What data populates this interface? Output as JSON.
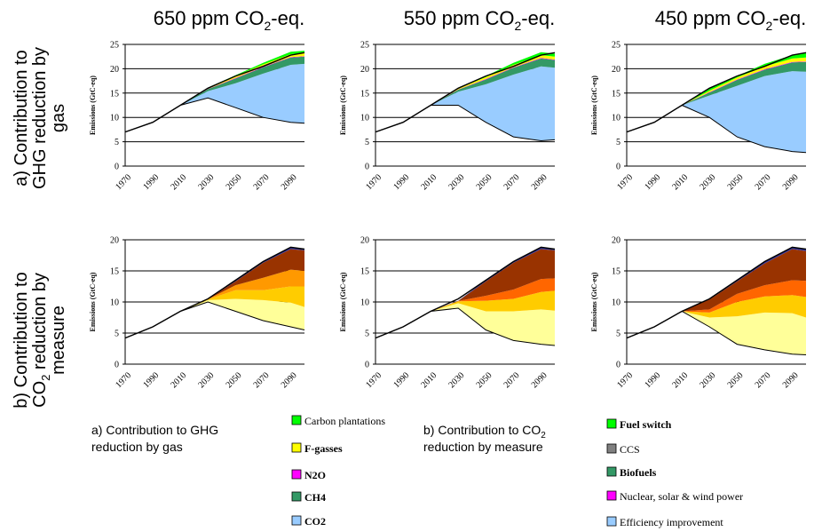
{
  "titles": {
    "col": [
      [
        "650 ppm CO",
        "2",
        "-eq."
      ],
      [
        "550 ppm CO",
        "2",
        "-eq."
      ],
      [
        "450 ppm CO",
        "2",
        "-eq."
      ]
    ],
    "row_a": [
      "a) Contribution to",
      "GHG reduction by",
      "gas"
    ],
    "row_b": [
      "b) Contribution to",
      "CO",
      "2",
      " reduction by",
      "measure"
    ]
  },
  "colors": {
    "co2": "#99ccff",
    "ch4": "#339966",
    "n2o": "#ff00ff",
    "fgas": "#ffff00",
    "plant": "#00ff00",
    "eff": "#ffff99",
    "nuc": "#ffcc00",
    "bio": "#ff9900",
    "ccs": "#ff6600",
    "fuel": "#993300",
    "tail": "#333399"
  },
  "legend_a": {
    "title": [
      "a) Contribution to  GHG",
      "reduction by gas"
    ],
    "items": [
      {
        "label": "Carbon plantations",
        "color": "#00ff00",
        "bold": false
      },
      {
        "label": "F-gasses",
        "color": "#ffff00",
        "bold": true
      },
      {
        "label": "N2O",
        "color": "#ff00ff",
        "bold": true
      },
      {
        "label": "CH4",
        "color": "#339966",
        "bold": true
      },
      {
        "label": "CO2",
        "color": "#99ccff",
        "bold": true
      }
    ]
  },
  "legend_b": {
    "title": [
      "b) Contribution to CO",
      "2",
      "reduction by measure"
    ],
    "items": [
      {
        "label": "Fuel switch",
        "color": "#00ff00",
        "bold": true
      },
      {
        "label": "CCS",
        "color": "#808080",
        "bold": false
      },
      {
        "label": "Biofuels",
        "color": "#339966",
        "bold": true
      },
      {
        "label": "Nuclear, solar & wind power",
        "color": "#ff00ff",
        "bold": false
      },
      {
        "label": "Efficiency improvement",
        "color": "#99ccff",
        "bold": false
      }
    ]
  },
  "chart_data": [
    {
      "type": "area",
      "panel": "a",
      "scenario": "650 ppm CO2-eq.",
      "ylabel": "Emissions (GtC-eq)",
      "ylim": [
        0,
        25
      ],
      "yticks": [
        0,
        5,
        10,
        15,
        20,
        25
      ],
      "x": [
        1970,
        1990,
        2010,
        2030,
        2050,
        2070,
        2090,
        2100
      ],
      "xticks": [
        1970,
        1990,
        2010,
        2030,
        2050,
        2070,
        2090
      ],
      "baseline": [
        7,
        9,
        12.5,
        16,
        18.5,
        20.5,
        22.8,
        23.3
      ],
      "remaining": [
        7,
        9,
        12.5,
        14,
        12,
        10,
        9,
        8.8
      ],
      "wedges": [
        {
          "key": "co2",
          "values": [
            0,
            0,
            0,
            1.4,
            5.0,
            9.0,
            11.8,
            12.2
          ]
        },
        {
          "key": "ch4",
          "values": [
            0,
            0,
            0,
            0.4,
            1.0,
            1.3,
            1.5,
            1.5
          ]
        },
        {
          "key": "n2o",
          "values": [
            0,
            0,
            0,
            0.05,
            0.1,
            0.1,
            0.1,
            0.1
          ]
        },
        {
          "key": "fgas",
          "values": [
            0,
            0,
            0,
            0.2,
            0.4,
            0.5,
            0.6,
            0.6
          ]
        },
        {
          "key": "plant",
          "values": [
            0,
            0,
            0,
            0.05,
            0.15,
            0.3,
            0.5,
            0.5
          ]
        }
      ]
    },
    {
      "type": "area",
      "panel": "a",
      "scenario": "550 ppm CO2-eq.",
      "ylabel": "Emissions (GtC-eq)",
      "ylim": [
        0,
        25
      ],
      "yticks": [
        0,
        5,
        10,
        15,
        20,
        25
      ],
      "x": [
        1970,
        1990,
        2010,
        2030,
        2050,
        2070,
        2090,
        2100
      ],
      "xticks": [
        1970,
        1990,
        2010,
        2030,
        2050,
        2070,
        2090
      ],
      "baseline": [
        7,
        9,
        12.5,
        16,
        18.5,
        20.5,
        22.8,
        23.3
      ],
      "remaining": [
        7,
        9,
        12.5,
        12.5,
        9,
        6,
        5.2,
        5.4
      ],
      "wedges": [
        {
          "key": "co2",
          "values": [
            0,
            0,
            0,
            2.8,
            7.8,
            12.8,
            15.3,
            14.8
          ]
        },
        {
          "key": "ch4",
          "values": [
            0,
            0,
            0,
            0.4,
            1.0,
            1.4,
            1.6,
            1.6
          ]
        },
        {
          "key": "n2o",
          "values": [
            0,
            0,
            0,
            0.05,
            0.1,
            0.1,
            0.1,
            0.1
          ]
        },
        {
          "key": "fgas",
          "values": [
            0,
            0,
            0,
            0.2,
            0.4,
            0.5,
            0.6,
            0.6
          ]
        },
        {
          "key": "plant",
          "values": [
            0,
            0,
            0,
            0.05,
            0.2,
            0.4,
            0.6,
            0.6
          ]
        }
      ]
    },
    {
      "type": "area",
      "panel": "a",
      "scenario": "450 ppm CO2-eq.",
      "ylabel": "Emissions (GtC-eq)",
      "ylim": [
        0,
        25
      ],
      "yticks": [
        0,
        5,
        10,
        15,
        20,
        25
      ],
      "x": [
        1970,
        1990,
        2010,
        2030,
        2050,
        2070,
        2090,
        2100
      ],
      "xticks": [
        1970,
        1990,
        2010,
        2030,
        2050,
        2070,
        2090
      ],
      "baseline": [
        7,
        9,
        12.5,
        16,
        18.5,
        20.5,
        22.8,
        23.3
      ],
      "remaining": [
        7,
        9,
        12.5,
        10,
        6,
        4,
        3,
        2.8
      ],
      "wedges": [
        {
          "key": "co2",
          "values": [
            0,
            0,
            0,
            4.5,
            10.5,
            14.5,
            16.5,
            16.6
          ]
        },
        {
          "key": "ch4",
          "values": [
            0,
            0,
            0,
            0.6,
            1.2,
            1.3,
            1.8,
            2.0
          ]
        },
        {
          "key": "n2o",
          "values": [
            0,
            0,
            0,
            0.1,
            0.1,
            0.1,
            0.1,
            0.1
          ]
        },
        {
          "key": "fgas",
          "values": [
            0,
            0,
            0,
            0.3,
            0.4,
            0.6,
            0.7,
            0.8
          ]
        },
        {
          "key": "plant",
          "values": [
            0,
            0,
            0,
            0.5,
            0.3,
            0.5,
            0.7,
            1.0
          ]
        }
      ]
    },
    {
      "type": "area",
      "panel": "b",
      "scenario": "650 ppm CO2-eq.",
      "ylabel": "Emissions (GtC-eq)",
      "ylim": [
        0,
        20
      ],
      "yticks": [
        0,
        5,
        10,
        15,
        20
      ],
      "x": [
        1970,
        1990,
        2010,
        2030,
        2050,
        2070,
        2090,
        2100
      ],
      "xticks": [
        1970,
        1990,
        2010,
        2030,
        2050,
        2070,
        2090
      ],
      "baseline": [
        4.2,
        6,
        8.5,
        10.5,
        13.5,
        16.5,
        18.8,
        18.5
      ],
      "remaining": [
        4.2,
        6,
        8.5,
        10,
        8.5,
        7,
        6,
        5.5
      ],
      "wedges": [
        {
          "key": "eff",
          "values": [
            0,
            0,
            0,
            0.3,
            2.0,
            3.3,
            3.9,
            3.7
          ]
        },
        {
          "key": "nuc",
          "values": [
            0,
            0,
            0,
            0.1,
            1.4,
            1.6,
            2.6,
            3.3
          ]
        },
        {
          "key": "bio",
          "values": [
            0,
            0,
            0,
            0.05,
            0.8,
            2.0,
            2.7,
            2.5
          ]
        },
        {
          "key": "fuel",
          "values": [
            0,
            0,
            0,
            0.02,
            0.6,
            2.4,
            3.3,
            3.3
          ]
        },
        {
          "key": "tail",
          "values": [
            0,
            0,
            0,
            0.03,
            0.2,
            0.2,
            0.3,
            0.2
          ]
        }
      ]
    },
    {
      "type": "area",
      "panel": "b",
      "scenario": "550 ppm CO2-eq.",
      "ylabel": "Emissions (GtC-eq)",
      "ylim": [
        0,
        20
      ],
      "yticks": [
        0,
        5,
        10,
        15,
        20
      ],
      "x": [
        1970,
        1990,
        2010,
        2030,
        2050,
        2070,
        2090,
        2100
      ],
      "xticks": [
        1970,
        1990,
        2010,
        2030,
        2050,
        2070,
        2090
      ],
      "baseline": [
        4.2,
        6,
        8.5,
        10.5,
        13.5,
        16.5,
        18.8,
        18.5
      ],
      "remaining": [
        4.2,
        6,
        8.5,
        9,
        5.5,
        3.8,
        3.2,
        3
      ],
      "wedges": [
        {
          "key": "eff",
          "values": [
            0,
            0,
            0,
            0.8,
            3.0,
            4.7,
            5.6,
            5.6
          ]
        },
        {
          "key": "nuc",
          "values": [
            0,
            0,
            0,
            0.3,
            1.7,
            2.0,
            2.8,
            3.2
          ]
        },
        {
          "key": "ccs",
          "values": [
            0,
            0,
            0,
            0.05,
            0.8,
            1.5,
            2.1,
            2.0
          ]
        },
        {
          "key": "fuel",
          "values": [
            0,
            0,
            0,
            0.02,
            2.3,
            4.3,
            4.8,
            4.5
          ]
        },
        {
          "key": "tail",
          "values": [
            0,
            0,
            0,
            0.03,
            0.2,
            0.2,
            0.3,
            0.2
          ]
        }
      ]
    },
    {
      "type": "area",
      "panel": "b",
      "scenario": "450 ppm CO2-eq.",
      "ylabel": "Emissions (GtC-eq)",
      "ylim": [
        0,
        20
      ],
      "yticks": [
        0,
        5,
        10,
        15,
        20
      ],
      "x": [
        1970,
        1990,
        2010,
        2030,
        2050,
        2070,
        2090,
        2100
      ],
      "xticks": [
        1970,
        1990,
        2010,
        2030,
        2050,
        2070,
        2090
      ],
      "baseline": [
        4.2,
        6,
        8.5,
        10.5,
        13.5,
        16.5,
        18.8,
        18.5
      ],
      "remaining": [
        4.2,
        6,
        8.5,
        6,
        3.2,
        2.3,
        1.6,
        1.5
      ],
      "wedges": [
        {
          "key": "eff",
          "values": [
            0,
            0,
            0,
            1.5,
            4.5,
            6.0,
            6.6,
            6.0
          ]
        },
        {
          "key": "nuc",
          "values": [
            0,
            0,
            0,
            0.8,
            2.3,
            2.6,
            2.9,
            3.3
          ]
        },
        {
          "key": "ccs",
          "values": [
            0,
            0,
            0,
            0.5,
            1.3,
            1.8,
            2.4,
            2.6
          ]
        },
        {
          "key": "fuel",
          "values": [
            0,
            0,
            0,
            1.6,
            2.0,
            3.5,
            5.0,
            4.8
          ]
        },
        {
          "key": "tail",
          "values": [
            0,
            0,
            0,
            0.1,
            0.2,
            0.3,
            0.3,
            0.3
          ]
        }
      ]
    }
  ]
}
